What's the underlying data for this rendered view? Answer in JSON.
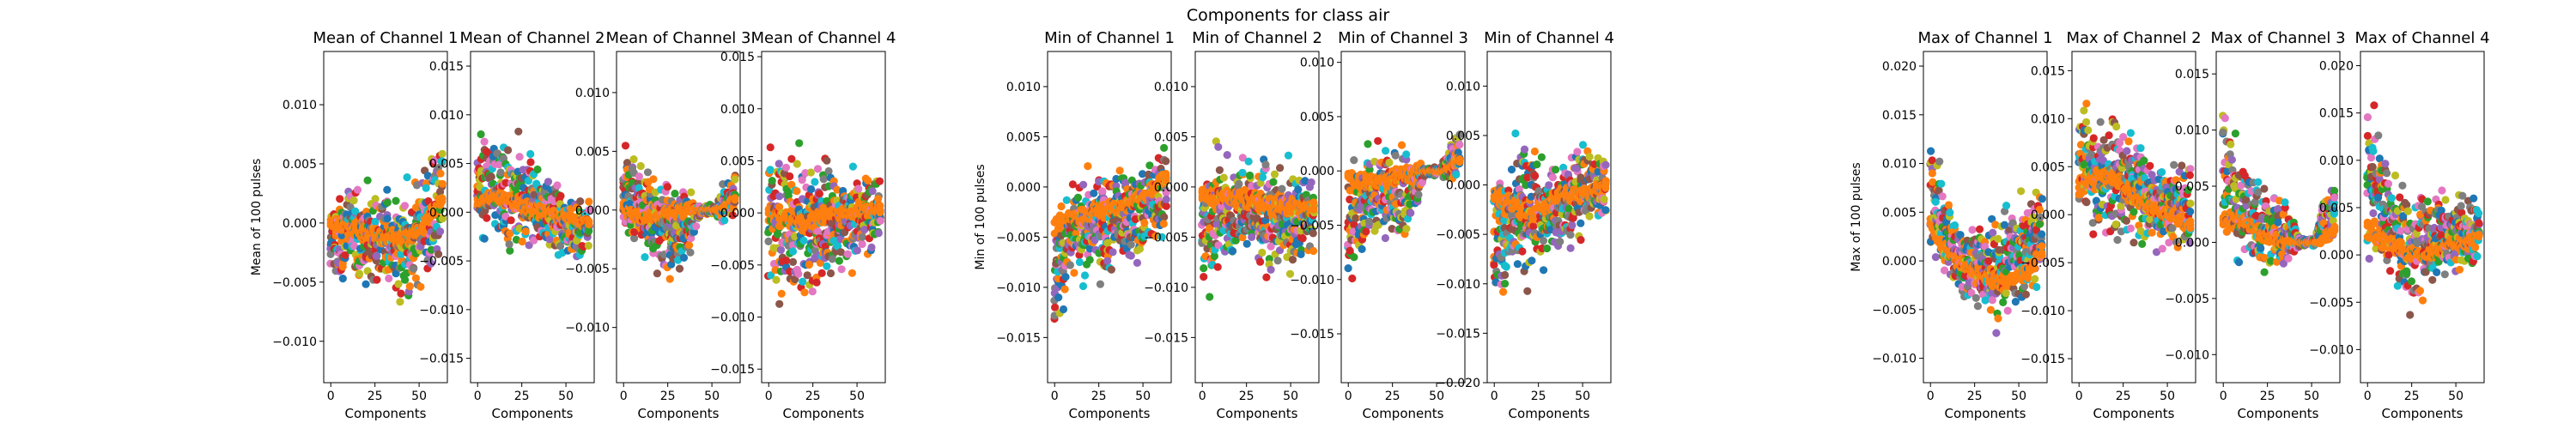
{
  "figure": {
    "suptitle": "Components for class air"
  },
  "colors": [
    "#1f77b4",
    "#ff7f0e",
    "#2ca02c",
    "#d62728",
    "#9467bd",
    "#8c564b",
    "#e377c2",
    "#7f7f7f",
    "#bcbd22",
    "#17becf"
  ],
  "chart_data": [
    {
      "type": "scatter",
      "group": "mean",
      "title": "Mean of Channel 1",
      "xlabel": "Components",
      "ylabel": "Mean of 100 pulses",
      "xlim": [
        -4,
        66
      ],
      "ylim": [
        -0.0135,
        0.0145
      ],
      "xticks": [
        0,
        25,
        50
      ],
      "xtick_labels": [
        "0",
        "25",
        "50"
      ],
      "yticks": [
        -0.01,
        -0.005,
        0,
        0.005,
        0.01
      ],
      "ytick_labels": [
        "−0.010",
        "−0.005",
        "0.000",
        "0.005",
        "0.010"
      ],
      "envelope": {
        "x": [
          0,
          10,
          20,
          30,
          40,
          50,
          63
        ],
        "lo": [
          -0.006,
          -0.006,
          -0.008,
          -0.007,
          -0.009,
          -0.008,
          -0.004
        ],
        "hi": [
          0.002,
          0.005,
          0.005,
          0.004,
          0.004,
          0.006,
          0.01
        ]
      },
      "mean_line": {
        "x": [
          0,
          10,
          20,
          30,
          40,
          50,
          63
        ],
        "y": [
          0.0,
          -0.0005,
          -0.0008,
          -0.001,
          -0.0012,
          -0.0008,
          0.002
        ]
      }
    },
    {
      "type": "scatter",
      "group": "mean",
      "title": "Mean of Channel 2",
      "xlabel": "Components",
      "ylabel": "",
      "xlim": [
        -4,
        66
      ],
      "ylim": [
        -0.0175,
        0.0165
      ],
      "xticks": [
        0,
        25,
        50
      ],
      "xtick_labels": [
        "0",
        "25",
        "50"
      ],
      "yticks": [
        -0.015,
        -0.01,
        -0.005,
        0,
        0.005,
        0.01,
        0.015
      ],
      "ytick_labels": [
        "−0.015",
        "−0.010",
        "−0.005",
        "0.000",
        "0.005",
        "0.010",
        "0.015"
      ],
      "envelope": {
        "x": [
          0,
          10,
          20,
          30,
          40,
          50,
          63
        ],
        "lo": [
          -0.004,
          -0.006,
          -0.007,
          -0.006,
          -0.006,
          -0.007,
          -0.005
        ],
        "hi": [
          0.01,
          0.01,
          0.01,
          0.008,
          0.006,
          0.004,
          0.002
        ]
      },
      "mean_line": {
        "x": [
          0,
          10,
          20,
          30,
          40,
          50,
          63
        ],
        "y": [
          0.001,
          0.0015,
          0.001,
          0.0005,
          0.0,
          -0.0005,
          -0.001
        ]
      }
    },
    {
      "type": "scatter",
      "group": "mean",
      "title": "Mean of Channel 3",
      "xlabel": "Components",
      "ylabel": "",
      "xlim": [
        -4,
        66
      ],
      "ylim": [
        -0.0147,
        0.0135
      ],
      "xticks": [
        0,
        25,
        50
      ],
      "xtick_labels": [
        "0",
        "25",
        "50"
      ],
      "yticks": [
        -0.01,
        -0.005,
        0,
        0.005,
        0.01
      ],
      "ytick_labels": [
        "−0.010",
        "−0.005",
        "0.000",
        "0.005",
        "0.010"
      ],
      "envelope": {
        "x": [
          0,
          10,
          20,
          30,
          38,
          44,
          52,
          56,
          63
        ],
        "lo": [
          -0.004,
          -0.006,
          -0.007,
          -0.008,
          -0.005,
          -0.0005,
          -0.0005,
          -0.002,
          -0.001
        ],
        "hi": [
          0.007,
          0.006,
          0.005,
          0.004,
          0.003,
          0.0005,
          0.0005,
          0.003,
          0.004
        ]
      },
      "mean_line": {
        "x": [
          0,
          10,
          20,
          30,
          40,
          45,
          55,
          63
        ],
        "y": [
          0.0,
          -0.0005,
          -0.0005,
          0.0,
          0.0,
          0.0,
          0.0,
          0.001
        ]
      }
    },
    {
      "type": "scatter",
      "group": "mean",
      "title": "Mean of Channel 4",
      "xlabel": "Components",
      "ylabel": "",
      "xlim": [
        -4,
        66
      ],
      "ylim": [
        -0.0163,
        0.0155
      ],
      "xticks": [
        0,
        25,
        50
      ],
      "xtick_labels": [
        "0",
        "25",
        "50"
      ],
      "yticks": [
        -0.015,
        -0.01,
        -0.005,
        0,
        0.005,
        0.01,
        0.015
      ],
      "ytick_labels": [
        "−0.015",
        "−0.010",
        "−0.005",
        "0.000",
        "0.005",
        "0.010",
        "0.015"
      ],
      "envelope": {
        "x": [
          0,
          10,
          20,
          30,
          40,
          50,
          63
        ],
        "lo": [
          -0.01,
          -0.012,
          -0.013,
          -0.01,
          -0.008,
          -0.007,
          -0.004
        ],
        "hi": [
          0.008,
          0.011,
          0.01,
          0.008,
          0.007,
          0.006,
          0.006
        ]
      },
      "mean_line": {
        "x": [
          0,
          10,
          20,
          30,
          40,
          50,
          63
        ],
        "y": [
          0.0,
          -0.0005,
          -0.001,
          -0.0005,
          0.0,
          0.0,
          0.0005
        ]
      }
    },
    {
      "type": "scatter",
      "group": "min",
      "title": "Min of Channel 1",
      "xlabel": "Components",
      "ylabel": "Min of 100 pulses",
      "xlim": [
        -4,
        66
      ],
      "ylim": [
        -0.0195,
        0.0135
      ],
      "xticks": [
        0,
        25,
        50
      ],
      "xtick_labels": [
        "0",
        "25",
        "50"
      ],
      "yticks": [
        -0.015,
        -0.01,
        -0.005,
        0,
        0.005,
        0.01
      ],
      "ytick_labels": [
        "−0.015",
        "−0.010",
        "−0.005",
        "0.000",
        "0.005",
        "0.010"
      ],
      "envelope": {
        "x": [
          0,
          10,
          20,
          30,
          40,
          50,
          63
        ],
        "lo": [
          -0.018,
          -0.012,
          -0.011,
          -0.011,
          -0.01,
          -0.01,
          -0.008
        ],
        "hi": [
          0.001,
          0.002,
          0.004,
          0.004,
          0.004,
          0.005,
          0.008
        ]
      },
      "mean_line": {
        "x": [
          0,
          10,
          20,
          30,
          40,
          50,
          63
        ],
        "y": [
          -0.004,
          -0.003,
          -0.003,
          -0.002,
          -0.002,
          -0.001,
          0.001
        ]
      }
    },
    {
      "type": "scatter",
      "group": "min",
      "title": "Min of Channel 2",
      "xlabel": "Components",
      "ylabel": "",
      "xlim": [
        -4,
        66
      ],
      "ylim": [
        -0.0195,
        0.0135
      ],
      "xticks": [
        0,
        25,
        50
      ],
      "xtick_labels": [
        "0",
        "25",
        "50"
      ],
      "yticks": [
        -0.015,
        -0.01,
        -0.005,
        0,
        0.005,
        0.01
      ],
      "ytick_labels": [
        "−0.015",
        "−0.010",
        "−0.005",
        "0.000",
        "0.005",
        "0.010"
      ],
      "envelope": {
        "x": [
          0,
          10,
          20,
          30,
          40,
          50,
          63
        ],
        "lo": [
          -0.013,
          -0.012,
          -0.01,
          -0.01,
          -0.011,
          -0.011,
          -0.008
        ],
        "hi": [
          0.004,
          0.007,
          0.006,
          0.005,
          0.005,
          0.004,
          0.003
        ]
      },
      "mean_line": {
        "x": [
          0,
          10,
          20,
          30,
          40,
          50,
          63
        ],
        "y": [
          -0.001,
          -0.001,
          -0.001,
          -0.0015,
          -0.002,
          -0.002,
          -0.002
        ]
      }
    },
    {
      "type": "scatter",
      "group": "min",
      "title": "Min of Channel 3",
      "xlabel": "Components",
      "ylabel": "",
      "xlim": [
        -4,
        66
      ],
      "ylim": [
        -0.0195,
        0.011
      ],
      "xticks": [
        0,
        25,
        50
      ],
      "xtick_labels": [
        "0",
        "25",
        "50"
      ],
      "yticks": [
        -0.015,
        -0.01,
        -0.005,
        0,
        0.005,
        0.01
      ],
      "ytick_labels": [
        "−0.015",
        "−0.010",
        "−0.005",
        "0.000",
        "0.005",
        "0.010"
      ],
      "envelope": {
        "x": [
          0,
          10,
          20,
          30,
          38,
          44,
          52,
          56,
          63
        ],
        "lo": [
          -0.013,
          -0.01,
          -0.008,
          -0.009,
          -0.005,
          -0.0005,
          -0.0005,
          -0.002,
          -0.001
        ],
        "hi": [
          0.004,
          0.004,
          0.005,
          0.004,
          0.003,
          0.0005,
          0.0005,
          0.003,
          0.005
        ]
      },
      "mean_line": {
        "x": [
          0,
          10,
          20,
          30,
          40,
          45,
          55,
          63
        ],
        "y": [
          -0.001,
          -0.001,
          -0.0008,
          -0.0005,
          0.0,
          0.0,
          0.0,
          0.001
        ]
      }
    },
    {
      "type": "scatter",
      "group": "min",
      "title": "Min of Channel 4",
      "xlabel": "Components",
      "ylabel": "",
      "xlim": [
        -4,
        66
      ],
      "ylim": [
        -0.02,
        0.0135
      ],
      "xticks": [
        0,
        25,
        50
      ],
      "xtick_labels": [
        "0",
        "25",
        "50"
      ],
      "yticks": [
        -0.02,
        -0.015,
        -0.01,
        -0.005,
        0,
        0.005,
        0.01
      ],
      "ytick_labels": [
        "−0.020",
        "−0.015",
        "−0.010",
        "−0.005",
        "0.000",
        "0.005",
        "0.010"
      ],
      "envelope": {
        "x": [
          0,
          10,
          20,
          30,
          40,
          50,
          63
        ],
        "lo": [
          -0.016,
          -0.014,
          -0.013,
          -0.01,
          -0.008,
          -0.007,
          -0.005
        ],
        "hi": [
          0.005,
          0.007,
          0.007,
          0.005,
          0.005,
          0.006,
          0.005
        ]
      },
      "mean_line": {
        "x": [
          0,
          10,
          20,
          30,
          40,
          50,
          63
        ],
        "y": [
          -0.001,
          -0.002,
          -0.003,
          -0.002,
          -0.001,
          -0.001,
          0.0
        ]
      }
    },
    {
      "type": "scatter",
      "group": "max",
      "title": "Max of Channel 1",
      "xlabel": "Components",
      "ylabel": "Max of 100 pulses",
      "xlim": [
        -4,
        66
      ],
      "ylim": [
        -0.0125,
        0.0215
      ],
      "xticks": [
        0,
        25,
        50
      ],
      "xtick_labels": [
        "0",
        "25",
        "50"
      ],
      "yticks": [
        -0.01,
        -0.005,
        0,
        0.005,
        0.01,
        0.015,
        0.02
      ],
      "ytick_labels": [
        "−0.010",
        "−0.005",
        "0.000",
        "0.005",
        "0.010",
        "0.015",
        "0.020"
      ],
      "envelope": {
        "x": [
          0,
          5,
          15,
          25,
          35,
          45,
          55,
          63
        ],
        "lo": [
          -0.002,
          -0.002,
          -0.005,
          -0.007,
          -0.008,
          -0.008,
          -0.007,
          -0.004
        ],
        "hi": [
          0.015,
          0.012,
          0.006,
          0.005,
          0.006,
          0.008,
          0.009,
          0.01
        ]
      },
      "mean_line": {
        "x": [
          0,
          5,
          15,
          25,
          35,
          45,
          55,
          63
        ],
        "y": [
          0.004,
          0.002,
          0.0,
          -0.001,
          -0.002,
          -0.002,
          -0.001,
          0.001
        ]
      }
    },
    {
      "type": "scatter",
      "group": "max",
      "title": "Max of Channel 2",
      "xlabel": "Components",
      "ylabel": "",
      "xlim": [
        -4,
        66
      ],
      "ylim": [
        -0.0175,
        0.017
      ],
      "xticks": [
        0,
        25,
        50
      ],
      "xtick_labels": [
        "0",
        "25",
        "50"
      ],
      "yticks": [
        -0.015,
        -0.01,
        -0.005,
        0,
        0.005,
        0.01,
        0.015
      ],
      "ytick_labels": [
        "−0.015",
        "−0.010",
        "−0.005",
        "0.000",
        "0.005",
        "0.010",
        "0.015"
      ],
      "envelope": {
        "x": [
          0,
          10,
          20,
          30,
          40,
          50,
          63
        ],
        "lo": [
          -0.002,
          -0.004,
          -0.006,
          -0.006,
          -0.006,
          -0.006,
          -0.005
        ],
        "hi": [
          0.013,
          0.013,
          0.014,
          0.012,
          0.01,
          0.008,
          0.007
        ]
      },
      "mean_line": {
        "x": [
          0,
          10,
          20,
          30,
          40,
          50,
          63
        ],
        "y": [
          0.003,
          0.004,
          0.004,
          0.002,
          0.001,
          0.0,
          -0.001
        ]
      }
    },
    {
      "type": "scatter",
      "group": "max",
      "title": "Max of Channel 3",
      "xlabel": "Components",
      "ylabel": "",
      "xlim": [
        -4,
        66
      ],
      "ylim": [
        -0.0125,
        0.017
      ],
      "xticks": [
        0,
        25,
        50
      ],
      "xtick_labels": [
        "0",
        "25",
        "50"
      ],
      "yticks": [
        -0.01,
        -0.005,
        0,
        0.005,
        0.01,
        0.015
      ],
      "ytick_labels": [
        "−0.010",
        "−0.005",
        "0.000",
        "0.005",
        "0.010",
        "0.015"
      ],
      "envelope": {
        "x": [
          0,
          10,
          20,
          30,
          38,
          44,
          52,
          56,
          63
        ],
        "lo": [
          -0.002,
          -0.004,
          -0.005,
          -0.004,
          -0.003,
          -0.0005,
          -0.0005,
          -0.001,
          -0.0005
        ],
        "hi": [
          0.016,
          0.01,
          0.008,
          0.006,
          0.004,
          0.0005,
          0.0005,
          0.005,
          0.007
        ]
      },
      "mean_line": {
        "x": [
          0,
          10,
          20,
          30,
          40,
          45,
          55,
          63
        ],
        "y": [
          0.002,
          0.002,
          0.001,
          0.0,
          0.0,
          0.0,
          0.0,
          0.001
        ]
      }
    },
    {
      "type": "scatter",
      "group": "max",
      "title": "Max of Channel 4",
      "xlabel": "Components",
      "ylabel": "",
      "xlim": [
        -4,
        66
      ],
      "ylim": [
        -0.0135,
        0.0215
      ],
      "xticks": [
        0,
        25,
        50
      ],
      "xtick_labels": [
        "0",
        "25",
        "50"
      ],
      "yticks": [
        -0.01,
        -0.005,
        0,
        0.005,
        0.01,
        0.015,
        0.02
      ],
      "ytick_labels": [
        "−0.010",
        "−0.005",
        "0.000",
        "0.005",
        "0.010",
        "0.015",
        "0.020"
      ],
      "envelope": {
        "x": [
          0,
          5,
          15,
          25,
          35,
          45,
          55,
          63
        ],
        "lo": [
          -0.002,
          -0.004,
          -0.006,
          -0.009,
          -0.006,
          -0.004,
          -0.003,
          -0.002
        ],
        "hi": [
          0.02,
          0.017,
          0.012,
          0.01,
          0.009,
          0.008,
          0.008,
          0.008
        ]
      },
      "mean_line": {
        "x": [
          0,
          5,
          15,
          25,
          35,
          45,
          55,
          63
        ],
        "y": [
          0.003,
          0.002,
          0.001,
          0.0,
          0.0,
          0.001,
          0.001,
          0.002
        ]
      }
    }
  ]
}
